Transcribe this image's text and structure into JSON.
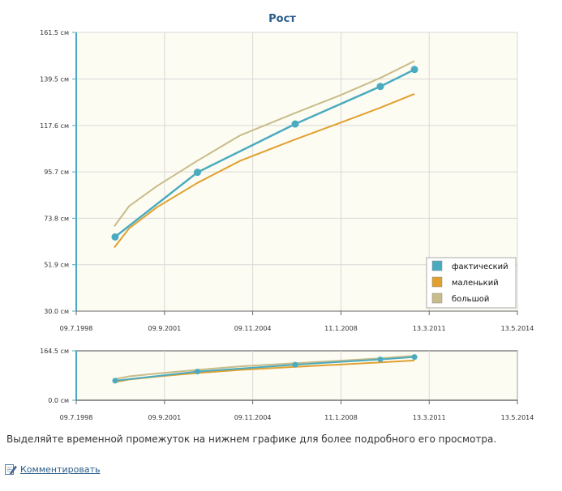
{
  "chart_data": {
    "type": "line",
    "title": "Рост",
    "y_tick_labels": [
      "161.5 см",
      "139.5 см",
      "117.6 см",
      "95.7 см",
      "73.8 см",
      "51.9 см",
      "30.0 см"
    ],
    "y_ticks": [
      161.5,
      139.5,
      117.6,
      95.7,
      73.8,
      51.9,
      30.0
    ],
    "ylim": [
      30.0,
      161.5
    ],
    "x_tick_labels": [
      "09.7.1998",
      "09.9.2001",
      "09.11.2004",
      "11.1.2008",
      "13.3.2011",
      "13.5.2014"
    ],
    "x_ticks": [
      "1998-07-09",
      "2001-09-09",
      "2004-11-09",
      "2008-01-11",
      "2011-03-13",
      "2014-05-13"
    ],
    "xlim": [
      "1998-07-09",
      "2014-05-13"
    ],
    "series": [
      {
        "name": "фактический",
        "color": "#4aabc0",
        "markers": true,
        "x": [
          "1999-12-01",
          "2002-11-15",
          "2006-05-20",
          "2009-06-10",
          "2010-09-01"
        ],
        "y": [
          65.0,
          95.5,
          118.3,
          136.0,
          144.0
        ]
      },
      {
        "name": "маленький",
        "color": "#e0a030",
        "markers": false,
        "x": [
          "1999-11-20",
          "2000-06-01",
          "2001-06-01",
          "2002-11-15",
          "2004-06-01",
          "2006-05-20",
          "2008-01-11",
          "2009-06-10",
          "2010-09-01"
        ],
        "y": [
          60.0,
          69.0,
          79.0,
          90.5,
          101.0,
          111.0,
          119.0,
          126.0,
          132.5
        ]
      },
      {
        "name": "большой",
        "color": "#c8bc8a",
        "markers": false,
        "x": [
          "1999-11-20",
          "2000-06-01",
          "2001-06-01",
          "2002-11-15",
          "2004-06-01",
          "2006-05-20",
          "2008-01-11",
          "2009-06-10",
          "2010-09-01"
        ],
        "y": [
          70.0,
          79.5,
          89.0,
          101.0,
          113.0,
          123.5,
          132.0,
          140.0,
          148.0
        ]
      }
    ],
    "grid": true,
    "legend_position": "bottom-right",
    "navigator": {
      "y_tick_labels": [
        "164.5 см",
        "0.0 см"
      ],
      "y_ticks": [
        164.5,
        0.0
      ],
      "ylim": [
        0.0,
        164.5
      ]
    }
  },
  "footer": {
    "hint": "Выделяйте временной промежуток на нижнем графике для более подробного его просмотра.",
    "comment_link": "Комментировать"
  }
}
